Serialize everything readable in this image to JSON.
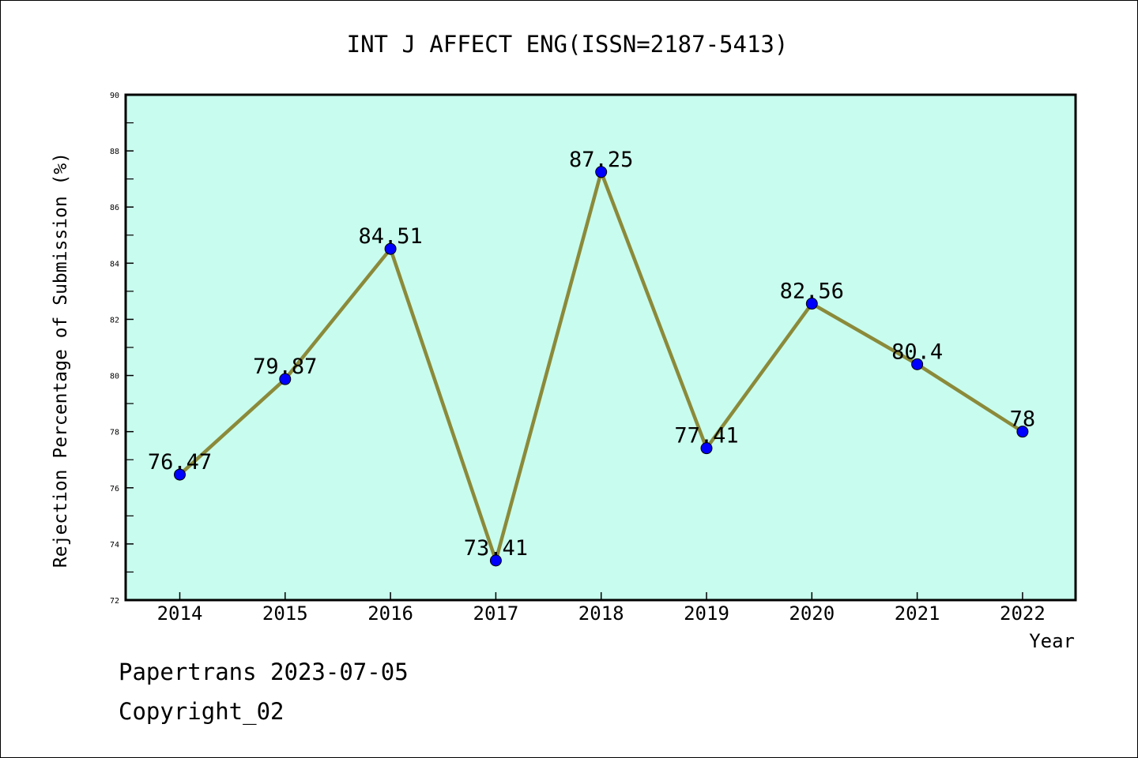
{
  "chart_data": {
    "type": "line",
    "title": "INT J AFFECT ENG(ISSN=2187-5413)",
    "xlabel": "Year",
    "ylabel": "Rejection Percentage of Submission (%)",
    "categories": [
      "2014",
      "2015",
      "2016",
      "2017",
      "2018",
      "2019",
      "2020",
      "2021",
      "2022"
    ],
    "values": [
      76.47,
      79.87,
      84.51,
      73.41,
      87.25,
      77.41,
      82.56,
      80.4,
      78
    ],
    "data_labels": [
      "76.47",
      "79.87",
      "84.51",
      "73.41",
      "87.25",
      "77.41",
      "82.56",
      "80.4",
      "78"
    ],
    "ylim": [
      72,
      90
    ],
    "yticks": [
      "72",
      "74",
      "76",
      "78",
      "80",
      "82",
      "84",
      "86",
      "88",
      "90"
    ],
    "grid": false,
    "colors": {
      "plot_background": "#c8fcee",
      "line": "#8b8a3a",
      "marker": "#0000ff"
    }
  },
  "footer": {
    "line1": "Papertrans 2023-07-05",
    "line2": "Copyright_02"
  }
}
